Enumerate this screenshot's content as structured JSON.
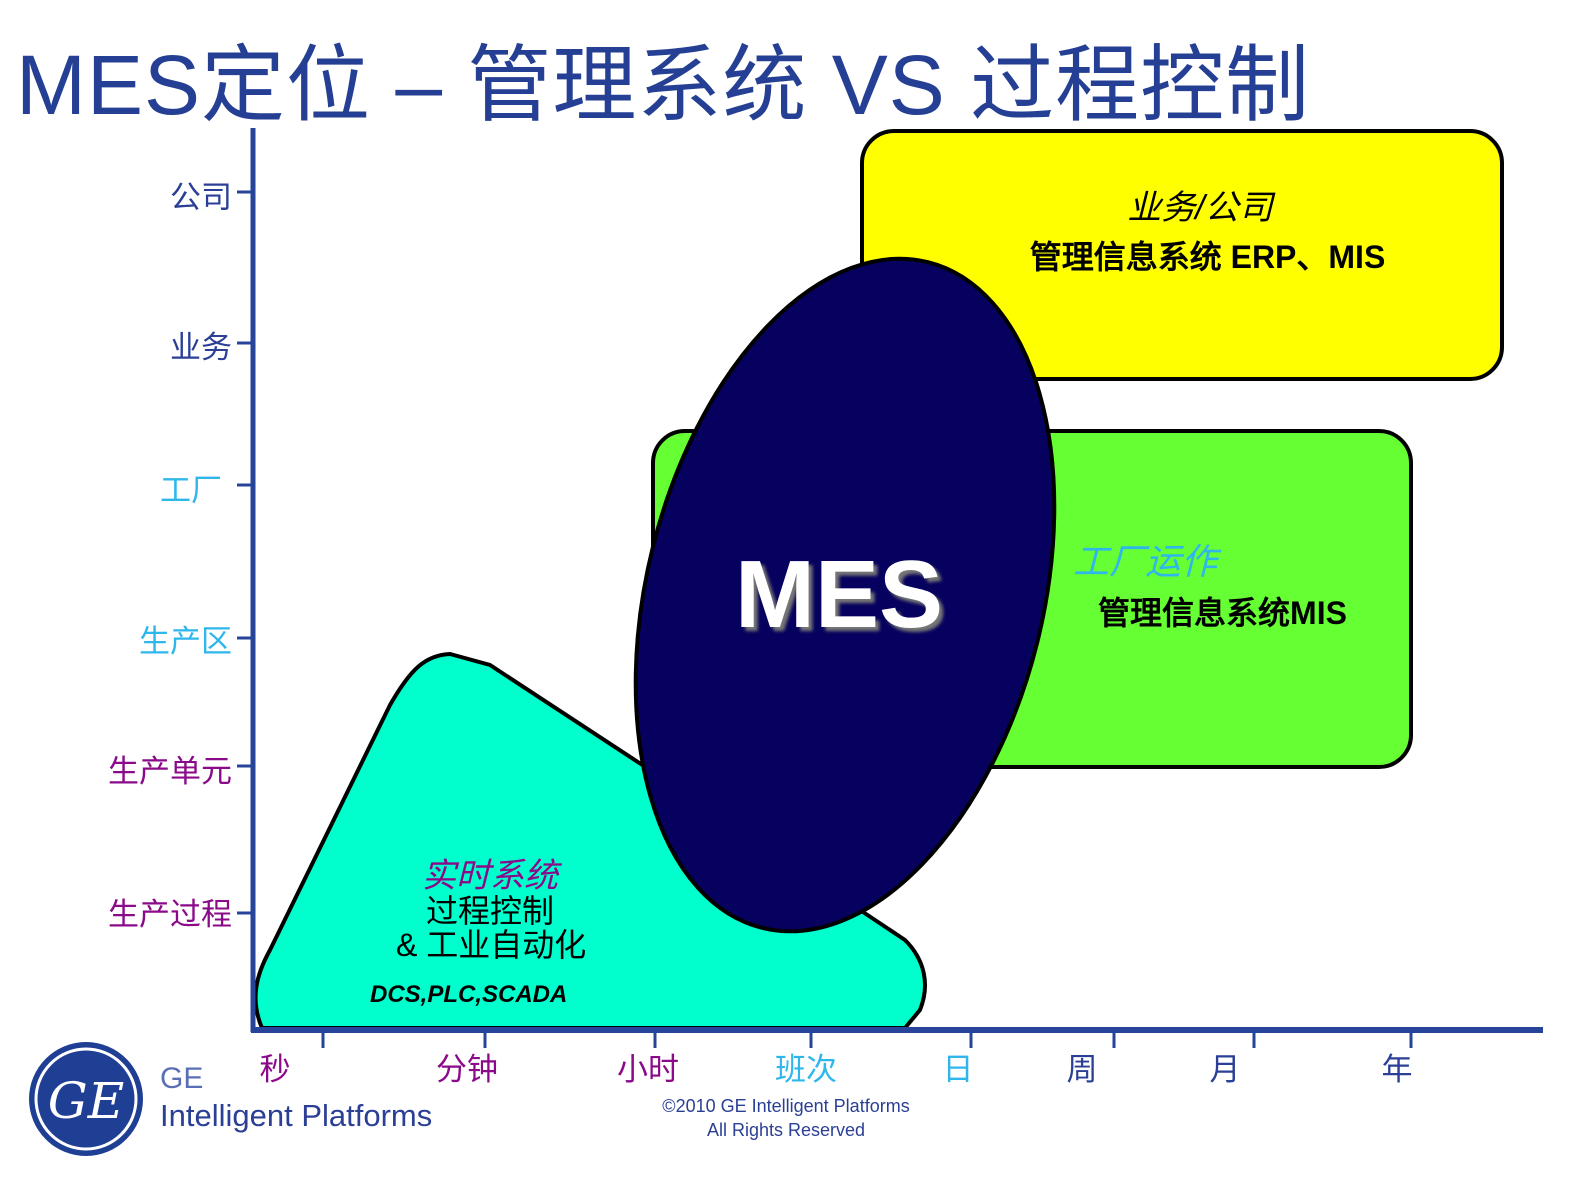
{
  "title": "MES定位 – 管理系统 VS 过程控制",
  "y_axis": [
    {
      "label": "公司",
      "color": "#2a3f95"
    },
    {
      "label": "业务",
      "color": "#2a3f95"
    },
    {
      "label": "工厂",
      "color": "#2fb7ec"
    },
    {
      "label": "生产区",
      "color": "#2fb7ec"
    },
    {
      "label": "生产单元",
      "color": "#8a0a8a"
    },
    {
      "label": "生产过程",
      "color": "#8a0a8a"
    }
  ],
  "x_axis": [
    {
      "label": "秒",
      "color": "#8a0a8a"
    },
    {
      "label": "分钟",
      "color": "#8a0a8a"
    },
    {
      "label": "小时",
      "color": "#8a0a8a"
    },
    {
      "label": "班次",
      "color": "#2fb7ec"
    },
    {
      "label": "日",
      "color": "#2fb7ec"
    },
    {
      "label": "周",
      "color": "#2a3f95"
    },
    {
      "label": "月",
      "color": "#2a3f95"
    },
    {
      "label": "年",
      "color": "#2a3f95"
    }
  ],
  "erp_box": {
    "title": "业务/公司",
    "text": "管理信息系统 ERP、MIS",
    "color": "#ffff00"
  },
  "mis_box": {
    "title": "工厂运作",
    "text": "管理信息系统MIS",
    "color": "#66ff33"
  },
  "realtime": {
    "title": "实时系统",
    "line1": "过程控制",
    "line2": "& 工业自动化",
    "line3": "DCS,PLC,SCADA",
    "color": "#00ffcc"
  },
  "mes": {
    "label": "MES",
    "color": "#06005e"
  },
  "footer": {
    "brand_short": "GE",
    "brand_long": "Intelligent Platforms",
    "copyright": "©2010 GE Intelligent Platforms",
    "rights": "All Rights Reserved",
    "logo_text": "GE"
  }
}
